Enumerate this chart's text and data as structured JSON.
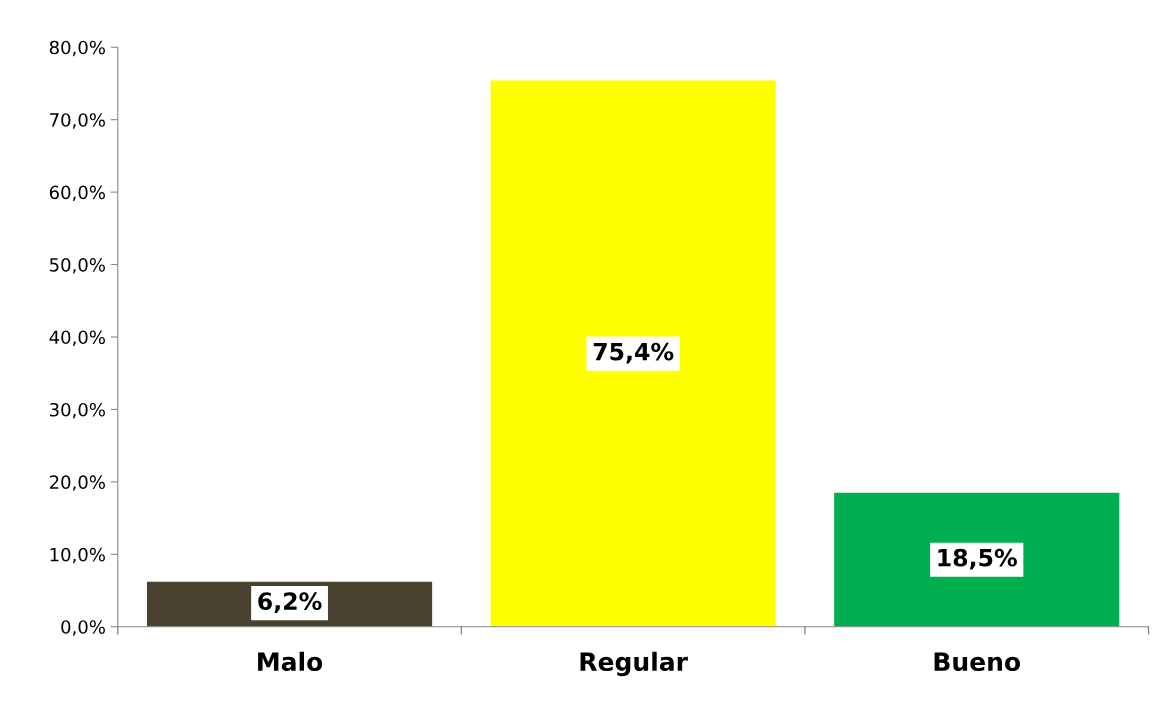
{
  "chart_data": {
    "type": "bar",
    "categories": [
      "Malo",
      "Regular",
      "Bueno"
    ],
    "values": [
      6.2,
      75.4,
      18.5
    ],
    "colors": [
      "#4a4230",
      "#ffff00",
      "#00b050"
    ],
    "value_labels": [
      "6,2%",
      "75,4%",
      "18,5%"
    ],
    "ylim": [
      0,
      80
    ],
    "yticks": [
      {
        "value": 0,
        "label": "0,0%"
      },
      {
        "value": 10,
        "label": "10,0%"
      },
      {
        "value": 20,
        "label": "20,0%"
      },
      {
        "value": 30,
        "label": "30,0%"
      },
      {
        "value": 40,
        "label": "40,0%"
      },
      {
        "value": 50,
        "label": "50,0%"
      },
      {
        "value": 60,
        "label": "60,0%"
      },
      {
        "value": 70,
        "label": "70,0%"
      },
      {
        "value": 80,
        "label": "80,0%"
      }
    ],
    "grid": false,
    "legend": false
  }
}
